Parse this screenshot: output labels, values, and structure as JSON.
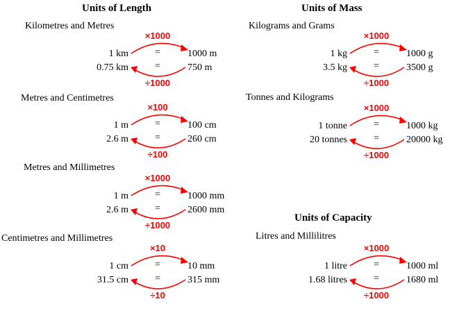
{
  "sections": [
    {
      "title": "Units of Length",
      "conversions": [
        {
          "name": "Kilometres and Metres",
          "mult": "×1000",
          "div": "÷1000",
          "row1_left": "1 km",
          "row1_right": "1000 m",
          "row2_left": "0.75 km",
          "row2_right": "750 m",
          "eq": "="
        },
        {
          "name": "Metres and Centimetres",
          "mult": "×100",
          "div": "÷100",
          "row1_left": "1 m",
          "row1_right": "100 cm",
          "row2_left": "2.6 m",
          "row2_right": "260 cm",
          "eq": "="
        },
        {
          "name": "Metres and Millimetres",
          "mult": "×1000",
          "div": "÷1000",
          "row1_left": "1 m",
          "row1_right": "1000 mm",
          "row2_left": "2.6 m",
          "row2_right": "2600 mm",
          "eq": "="
        },
        {
          "name": "Centimetres and Millimetres",
          "mult": "×10",
          "div": "÷10",
          "row1_left": "1 cm",
          "row1_right": "10 mm",
          "row2_left": "31.5 cm",
          "row2_right": "315 mm",
          "eq": "="
        }
      ]
    },
    {
      "title": "Units of Mass",
      "conversions": [
        {
          "name": "Kilograms and Grams",
          "mult": "×1000",
          "div": "÷1000",
          "row1_left": "1 kg",
          "row1_right": "1000 g",
          "row2_left": "3.5 kg",
          "row2_right": "3500 g",
          "eq": "="
        },
        {
          "name": "Tonnes and Kilograms",
          "mult": "×1000",
          "div": "÷1000",
          "row1_left": "1 tonne",
          "row1_right": "1000 kg",
          "row2_left": "20 tonnes",
          "row2_right": "20000 kg",
          "eq": "="
        }
      ]
    },
    {
      "title": "Units of Capacity",
      "conversions": [
        {
          "name": "Litres and Millilitres",
          "mult": "×1000",
          "div": "÷1000",
          "row1_left": "1 litre",
          "row1_right": "1000 ml",
          "row2_left": "1.68 litres",
          "row2_right": "1680 ml",
          "eq": "="
        }
      ]
    }
  ],
  "colors": {
    "arrow": "#ff0000",
    "text": "#000000"
  }
}
